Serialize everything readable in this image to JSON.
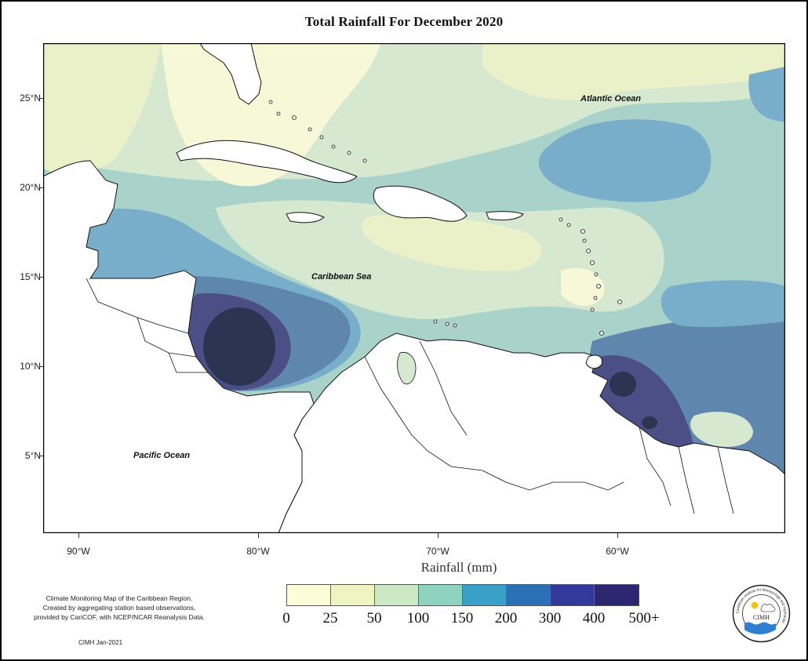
{
  "title": "Total Rainfall For December 2020",
  "axis_title": "Rainfall (mm)",
  "y_axis_labels": [
    "25°N",
    "20°N",
    "15°N",
    "10°N",
    "5°N"
  ],
  "x_axis_labels": [
    "90°W",
    "80°W",
    "70°W",
    "60°W"
  ],
  "region_labels": {
    "atlantic": "Atlantic Ocean",
    "caribbean": "Caribbean Sea",
    "pacific": "Pacific Ocean"
  },
  "caption": {
    "line1": "Climate Monitoring Map of the Caribbean Region.",
    "line2": "Created by aggregating station based observations,",
    "line3": "provided by CariCOF, with NCEP/NCAR Reanalysis Data."
  },
  "credit": "CIMH Jan-2021",
  "legend": {
    "labels": [
      "0",
      "25",
      "50",
      "100",
      "150",
      "200",
      "300",
      "400",
      "500+"
    ],
    "colors": [
      "#fcfcd9",
      "#eef5c0",
      "#cde8c4",
      "#8ed3c0",
      "#3aa0c8",
      "#2b6fb5",
      "#33399a",
      "#2d2670",
      "#10194a"
    ]
  },
  "logo_text": "CIMH",
  "logo_ring_text": "Caribbean Institute for Meteorology and Hydrology",
  "map_colors": {
    "very_dry": "#f7f8d8",
    "dry": "#eaf1c8",
    "moderate": "#d6e8cf",
    "teal": "#a9d2ca",
    "blue": "#79aecb",
    "steel": "#5f86ac",
    "purple": "#4c4f86",
    "dark": "#2b3450",
    "land": "#ffffff"
  }
}
